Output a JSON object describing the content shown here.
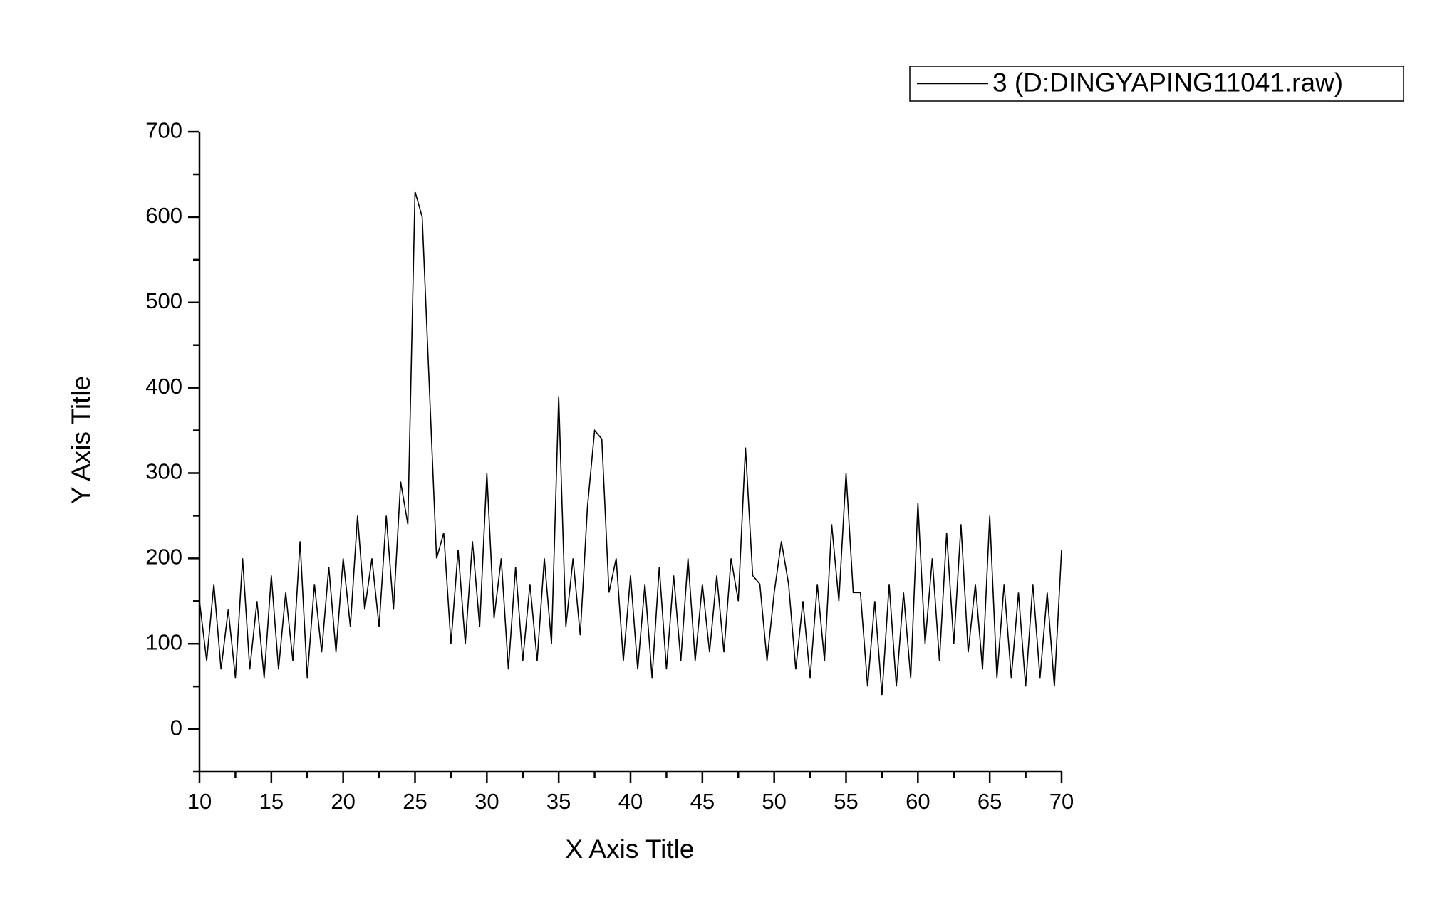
{
  "chart_data": {
    "type": "line",
    "x_label": "X Axis Title",
    "y_label": "Y Axis Title",
    "x": [
      10,
      10.5,
      11,
      11.5,
      12,
      12.5,
      13,
      13.5,
      14,
      14.5,
      15,
      15.5,
      16,
      16.5,
      17,
      17.5,
      18,
      18.5,
      19,
      19.5,
      20,
      20.5,
      21,
      21.5,
      22,
      22.5,
      23,
      23.5,
      24,
      24.5,
      25,
      25.5,
      26,
      26.5,
      27,
      27.5,
      28,
      28.5,
      29,
      29.5,
      30,
      30.5,
      31,
      31.5,
      32,
      32.5,
      33,
      33.5,
      34,
      34.5,
      35,
      35.5,
      36,
      36.5,
      37,
      37.5,
      38,
      38.5,
      39,
      39.5,
      40,
      40.5,
      41,
      41.5,
      42,
      42.5,
      43,
      43.5,
      44,
      44.5,
      45,
      45.5,
      46,
      46.5,
      47,
      47.5,
      48,
      48.5,
      49,
      49.5,
      50,
      50.5,
      51,
      51.5,
      52,
      52.5,
      53,
      53.5,
      54,
      54.5,
      55,
      55.5,
      56,
      56.5,
      57,
      57.5,
      58,
      58.5,
      59,
      59.5,
      60,
      60.5,
      61,
      61.5,
      62,
      62.5,
      63,
      63.5,
      64,
      64.5,
      65,
      65.5,
      66,
      66.5,
      67,
      67.5,
      68,
      68.5,
      69,
      69.5,
      70
    ],
    "series": [
      {
        "name": "3 (D:DINGYAPING11041.raw)",
        "color": "#000000",
        "values": [
          150,
          80,
          170,
          70,
          140,
          60,
          200,
          70,
          150,
          60,
          180,
          70,
          160,
          80,
          220,
          60,
          170,
          90,
          190,
          90,
          200,
          120,
          250,
          140,
          200,
          120,
          250,
          140,
          290,
          240,
          630,
          600,
          400,
          200,
          230,
          100,
          210,
          100,
          220,
          120,
          300,
          130,
          200,
          70,
          190,
          80,
          170,
          80,
          200,
          100,
          390,
          120,
          200,
          110,
          260,
          350,
          340,
          160,
          200,
          80,
          180,
          70,
          170,
          60,
          190,
          70,
          180,
          80,
          200,
          80,
          170,
          90,
          180,
          90,
          200,
          150,
          330,
          180,
          170,
          80,
          160,
          220,
          170,
          70,
          150,
          60,
          170,
          80,
          240,
          150,
          300,
          160,
          160,
          50,
          150,
          40,
          170,
          50,
          160,
          60,
          265,
          100,
          200,
          80,
          230,
          100,
          240,
          90,
          170,
          70,
          250,
          60,
          170,
          60,
          160,
          50,
          170,
          60,
          160,
          50,
          210
        ]
      }
    ],
    "xlim": [
      10,
      70
    ],
    "xticks": [
      10,
      15,
      20,
      25,
      30,
      35,
      40,
      45,
      50,
      55,
      60,
      65,
      70
    ],
    "ylim": [
      -50,
      700
    ],
    "yticks": [
      0,
      100,
      200,
      300,
      400,
      500,
      600,
      700
    ],
    "legend": "upper right",
    "grid": false
  }
}
